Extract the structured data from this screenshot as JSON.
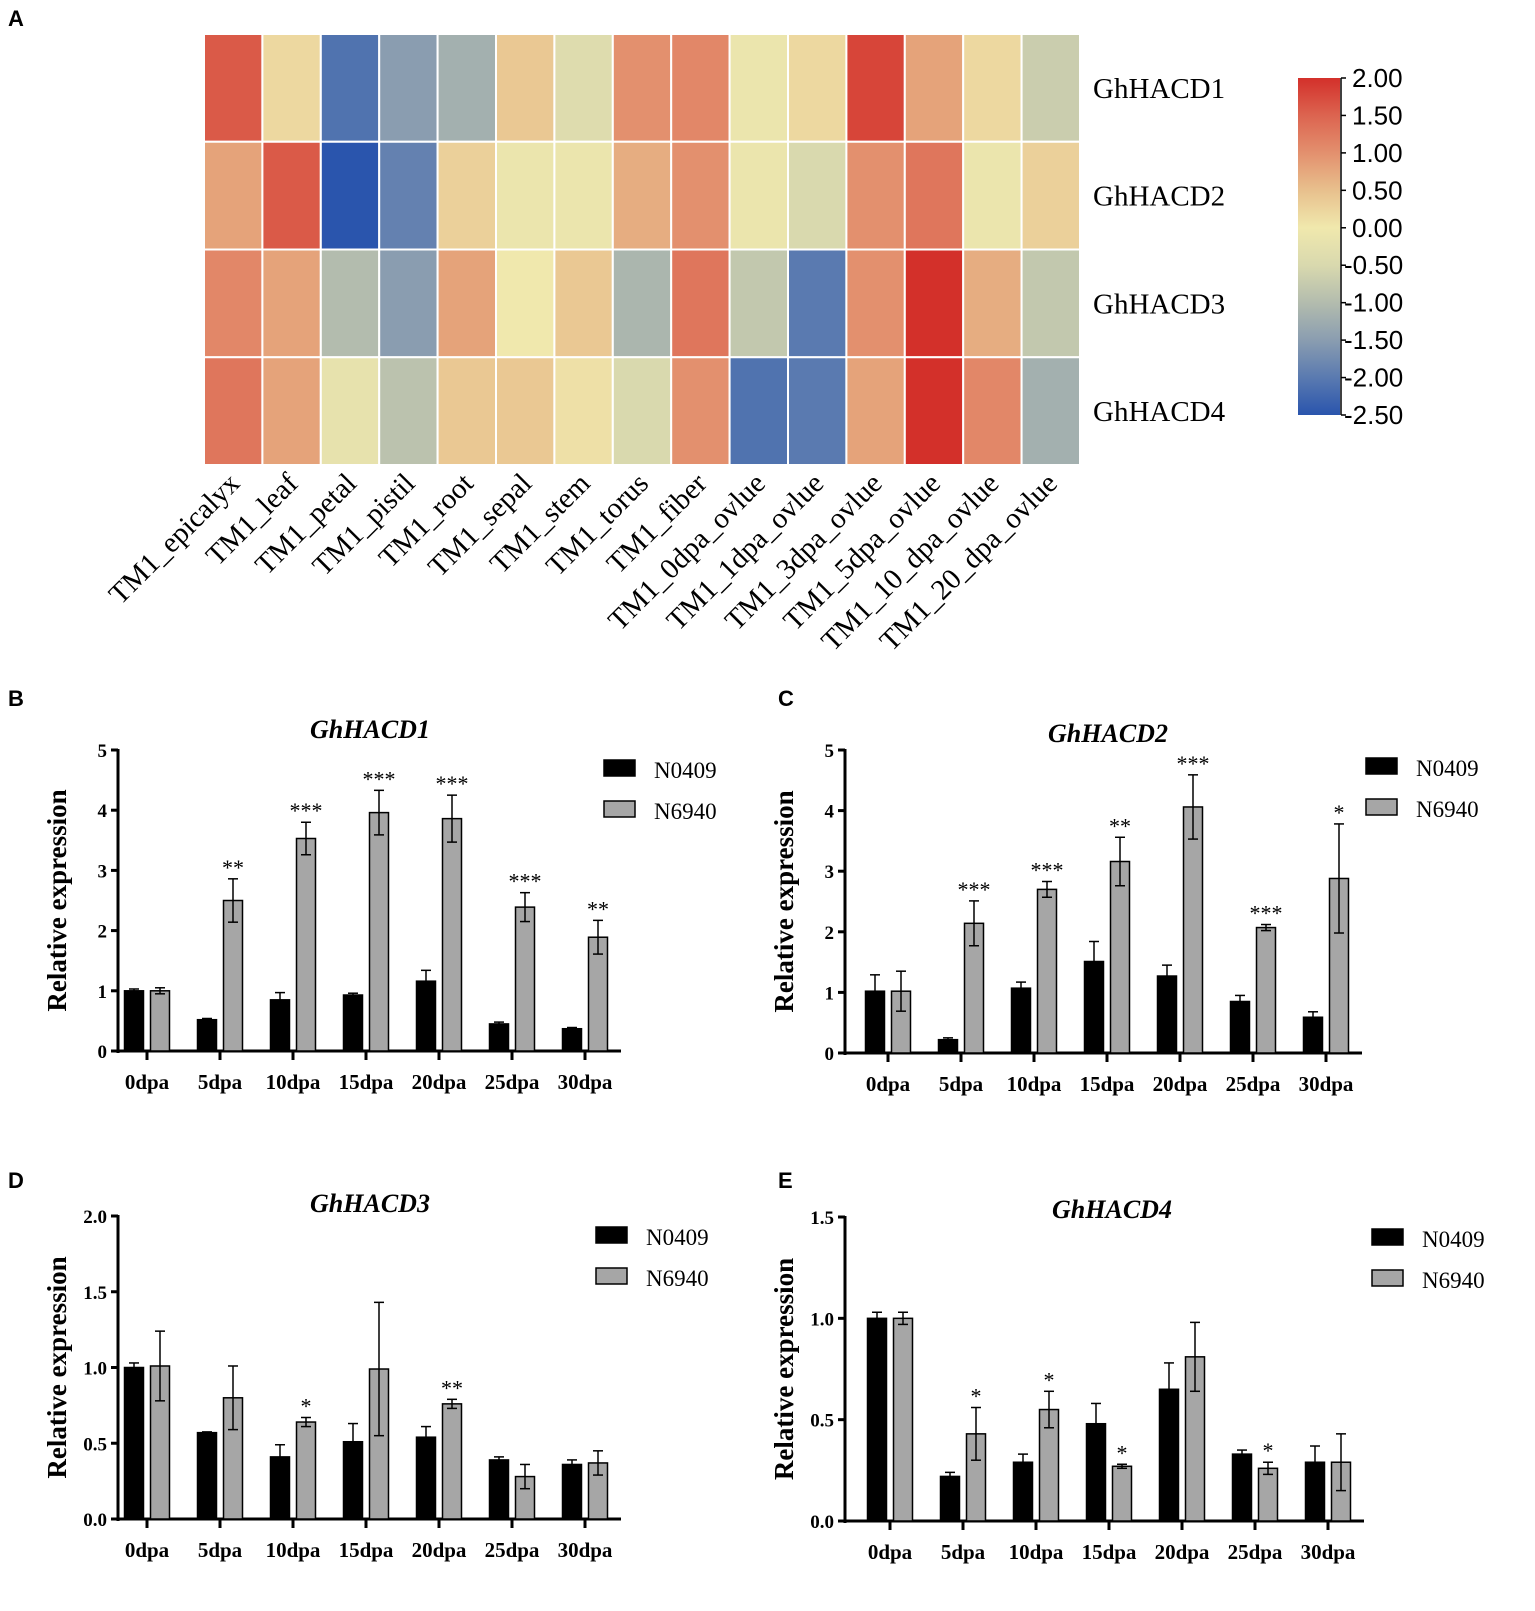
{
  "chart_data": [
    {
      "panel": "A",
      "type": "heatmap",
      "rows": [
        "GhHACD1",
        "GhHACD2",
        "GhHACD3",
        "GhHACD4"
      ],
      "columns": [
        "TM1_epicalyx",
        "TM1_leaf",
        "TM1_petal",
        "TM1_pistil",
        "TM1_root",
        "TM1_sepal",
        "TM1_stem",
        "TM1_torus",
        "TM1_fiber",
        "TM1_0dpa_ovlue",
        "TM1_1dpa_ovlue",
        "TM1_3dpa_ovlue",
        "TM1_5dpa_ovlue",
        "TM1_10_dpa_ovlue",
        "TM1_20_dpa_ovlue"
      ],
      "values": [
        [
          1.6,
          0.2,
          -2.1,
          -1.5,
          -1.2,
          0.4,
          -0.4,
          1.0,
          1.1,
          -0.1,
          0.2,
          1.8,
          0.8,
          0.2,
          -0.7
        ],
        [
          0.8,
          1.6,
          -2.5,
          -1.9,
          0.3,
          -0.1,
          -0.1,
          0.7,
          1.0,
          -0.1,
          -0.5,
          1.0,
          1.3,
          -0.1,
          0.3
        ],
        [
          1.1,
          0.8,
          -1.0,
          -1.5,
          0.8,
          0.0,
          0.4,
          -1.1,
          1.3,
          -0.8,
          -2.0,
          1.0,
          2.0,
          0.7,
          -0.8
        ],
        [
          1.3,
          0.8,
          -0.2,
          -0.9,
          0.4,
          0.4,
          0.1,
          -0.5,
          1.0,
          -2.1,
          -2.0,
          0.8,
          2.0,
          1.1,
          -1.2
        ]
      ],
      "colorbar": {
        "range": [
          -2.5,
          2.0
        ],
        "tick_labels": [
          "2.00",
          "1.50",
          "1.00",
          "0.50",
          "0.00",
          "-0.50",
          "-1.00",
          "-1.50",
          "-2.00",
          "-2.50"
        ],
        "tick_values": [
          2.0,
          1.5,
          1.0,
          0.5,
          0.0,
          -0.5,
          -1.0,
          -1.5,
          -2.0,
          -2.5
        ],
        "colors": [
          "#2a55ad",
          "#5a7ab0",
          "#8a9db0",
          "#b3bcae",
          "#d9d9ae",
          "#f0e8ad",
          "#e8c08d",
          "#e3906e",
          "#dc6450",
          "#d3302a"
        ],
        "color_stops": [
          -2.5,
          -2.0,
          -1.5,
          -1.0,
          -0.5,
          0.0,
          0.5,
          1.0,
          1.5,
          2.0
        ]
      }
    },
    {
      "panel": "B",
      "type": "bar",
      "title": "GhHACD1",
      "ylabel": "Relative expression",
      "categories": [
        "0dpa",
        "5dpa",
        "10dpa",
        "15dpa",
        "20dpa",
        "25dpa",
        "30dpa"
      ],
      "ylim": [
        0,
        5
      ],
      "yticks": [
        0,
        1,
        2,
        3,
        4,
        5
      ],
      "ytick_labels": [
        "0",
        "1",
        "2",
        "3",
        "4",
        "5"
      ],
      "series": [
        {
          "name": "N0409",
          "color": "#000000",
          "values": [
            1.0,
            0.52,
            0.85,
            0.93,
            1.16,
            0.45,
            0.37
          ],
          "errors": [
            0.03,
            0.02,
            0.12,
            0.03,
            0.18,
            0.03,
            0.02
          ]
        },
        {
          "name": "N6940",
          "color": "#a6a6a6",
          "values": [
            1.0,
            2.5,
            3.53,
            3.96,
            3.86,
            2.39,
            1.89
          ],
          "errors": [
            0.05,
            0.36,
            0.27,
            0.37,
            0.39,
            0.24,
            0.28
          ]
        }
      ],
      "significance": [
        "",
        "**",
        "***",
        "***",
        "***",
        "***",
        "**"
      ]
    },
    {
      "panel": "C",
      "type": "bar",
      "title": "GhHACD2",
      "ylabel": "Relative expression",
      "categories": [
        "0dpa",
        "5dpa",
        "10dpa",
        "15dpa",
        "20dpa",
        "25dpa",
        "30dpa"
      ],
      "ylim": [
        0,
        5
      ],
      "yticks": [
        0,
        1,
        2,
        3,
        4,
        5
      ],
      "ytick_labels": [
        "0",
        "1",
        "2",
        "3",
        "4",
        "5"
      ],
      "series": [
        {
          "name": "N0409",
          "color": "#000000",
          "values": [
            1.02,
            0.22,
            1.07,
            1.51,
            1.27,
            0.85,
            0.59
          ],
          "errors": [
            0.27,
            0.03,
            0.1,
            0.33,
            0.18,
            0.1,
            0.09
          ]
        },
        {
          "name": "N6940",
          "color": "#a6a6a6",
          "values": [
            1.02,
            2.14,
            2.7,
            3.16,
            4.06,
            2.07,
            2.88
          ],
          "errors": [
            0.33,
            0.37,
            0.13,
            0.4,
            0.53,
            0.05,
            0.9
          ]
        }
      ],
      "significance": [
        "",
        "***",
        "***",
        "**",
        "***",
        "***",
        "*"
      ]
    },
    {
      "panel": "D",
      "type": "bar",
      "title": "GhHACD3",
      "ylabel": "Relative expression",
      "categories": [
        "0dpa",
        "5dpa",
        "10dpa",
        "15dpa",
        "20dpa",
        "25dpa",
        "30dpa"
      ],
      "ylim": [
        0,
        2
      ],
      "yticks": [
        0,
        0.5,
        1,
        1.5,
        2
      ],
      "ytick_labels": [
        "0.0",
        "0.5",
        "1.0",
        "1.5",
        "2.0"
      ],
      "series": [
        {
          "name": "N0409",
          "color": "#000000",
          "values": [
            1.0,
            0.57,
            0.41,
            0.51,
            0.54,
            0.39,
            0.36
          ],
          "errors": [
            0.03,
            0.005,
            0.08,
            0.12,
            0.07,
            0.02,
            0.03
          ]
        },
        {
          "name": "N6940",
          "color": "#a6a6a6",
          "values": [
            1.01,
            0.8,
            0.64,
            0.99,
            0.76,
            0.28,
            0.37
          ],
          "errors": [
            0.23,
            0.21,
            0.03,
            0.44,
            0.03,
            0.08,
            0.08
          ]
        }
      ],
      "significance": [
        "",
        "",
        "*",
        "",
        "**",
        "",
        ""
      ]
    },
    {
      "panel": "E",
      "type": "bar",
      "title": "GhHACD4",
      "ylabel": "Relative expression",
      "categories": [
        "0dpa",
        "5dpa",
        "10dpa",
        "15dpa",
        "20dpa",
        "25dpa",
        "30dpa"
      ],
      "ylim": [
        0,
        1.5
      ],
      "yticks": [
        0,
        0.5,
        1,
        1.5
      ],
      "ytick_labels": [
        "0.0",
        "0.5",
        "1.0",
        "1.5"
      ],
      "series": [
        {
          "name": "N0409",
          "color": "#000000",
          "values": [
            1.0,
            0.22,
            0.29,
            0.48,
            0.65,
            0.33,
            0.29
          ],
          "errors": [
            0.03,
            0.02,
            0.04,
            0.1,
            0.13,
            0.02,
            0.08
          ]
        },
        {
          "name": "N6940",
          "color": "#a6a6a6",
          "values": [
            1.0,
            0.43,
            0.55,
            0.27,
            0.81,
            0.26,
            0.29
          ],
          "errors": [
            0.03,
            0.13,
            0.09,
            0.01,
            0.17,
            0.03,
            0.14
          ]
        }
      ],
      "significance": [
        "",
        "*",
        "*",
        "*",
        "",
        "*",
        ""
      ]
    }
  ]
}
